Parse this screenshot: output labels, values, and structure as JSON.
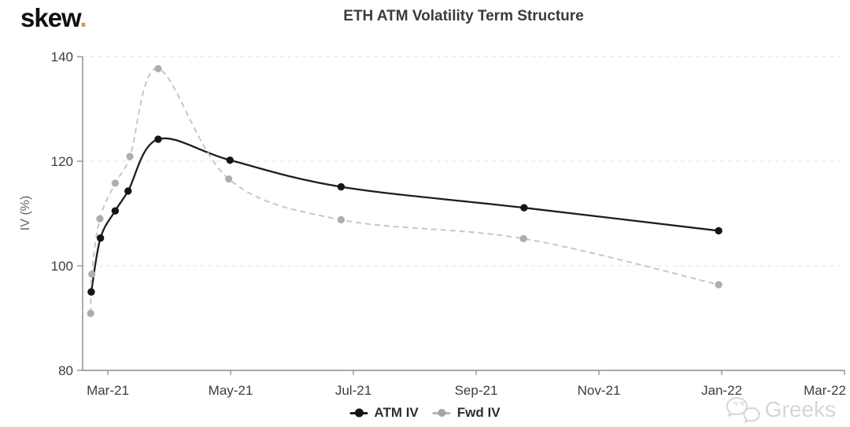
{
  "logo": {
    "text": "skew",
    "dot": "."
  },
  "title": "ETH ATM Volatility Term Structure",
  "watermark": {
    "label": "Greeks"
  },
  "chart_data": {
    "type": "line",
    "title": "ETH ATM Volatility Term Structure",
    "xlabel": "",
    "ylabel": "IV (%)",
    "ylim": [
      80,
      140
    ],
    "y_ticks": [
      80,
      100,
      120,
      140
    ],
    "x_ticks": [
      {
        "label": "Mar-21",
        "m": 0
      },
      {
        "label": "May-21",
        "m": 2
      },
      {
        "label": "Jul-21",
        "m": 4
      },
      {
        "label": "Sep-21",
        "m": 6
      },
      {
        "label": "Nov-21",
        "m": 8
      },
      {
        "label": "Jan-22",
        "m": 10
      },
      {
        "label": "Mar-22",
        "m": 12
      }
    ],
    "x_unit": "m = months after the Mar-21 tick",
    "grid": "horizontal dashed",
    "legend_position": "bottom center",
    "axis_color": "#8c8c8c",
    "grid_color": "#e3e3e3",
    "tick_label_color": "#3d3d3d",
    "series": [
      {
        "name": "ATM IV",
        "style": "solid",
        "line_color": "#1d1d1d",
        "marker_color": "#151515",
        "points": [
          {
            "m": -0.27,
            "iv": 95.0
          },
          {
            "m": -0.12,
            "iv": 105.3
          },
          {
            "m": 0.12,
            "iv": 110.5
          },
          {
            "m": 0.33,
            "iv": 114.3
          },
          {
            "m": 0.82,
            "iv": 124.2
          },
          {
            "m": 1.99,
            "iv": 120.2
          },
          {
            "m": 3.8,
            "iv": 115.1
          },
          {
            "m": 6.78,
            "iv": 111.1
          },
          {
            "m": 9.95,
            "iv": 106.7
          }
        ]
      },
      {
        "name": "Fwd IV",
        "style": "dashed",
        "line_color": "#c7c7c7",
        "marker_color": "#adadad",
        "points": [
          {
            "m": -0.28,
            "iv": 90.9
          },
          {
            "m": -0.26,
            "iv": 98.4
          },
          {
            "m": -0.13,
            "iv": 109.0
          },
          {
            "m": 0.12,
            "iv": 115.8
          },
          {
            "m": 0.36,
            "iv": 120.9
          },
          {
            "m": 0.82,
            "iv": 137.7
          },
          {
            "m": 1.97,
            "iv": 116.6
          },
          {
            "m": 3.8,
            "iv": 108.8
          },
          {
            "m": 6.77,
            "iv": 105.2
          },
          {
            "m": 9.95,
            "iv": 96.4
          }
        ]
      }
    ]
  }
}
